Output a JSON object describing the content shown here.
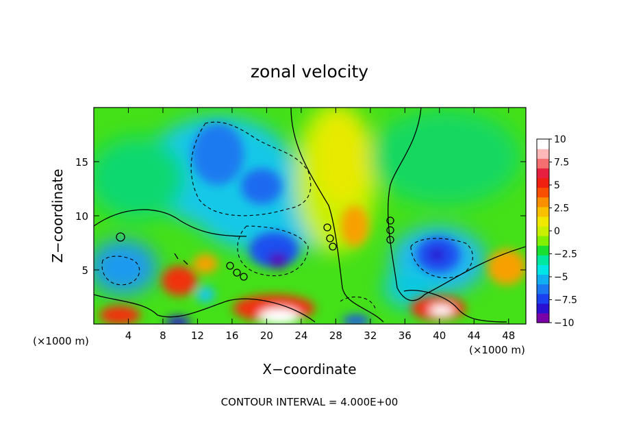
{
  "chart_data": {
    "type": "heatmap",
    "title": "zonal velocity",
    "xlabel": "X−coordinate",
    "ylabel": "Z−coordinate",
    "x_unit_left": "(×1000 m)",
    "x_unit_right": "(×1000 m)",
    "footer": "CONTOUR INTERVAL = 4.000E+00",
    "xlim": [
      0,
      50
    ],
    "ylim": [
      0,
      20
    ],
    "x_ticks": [
      "4",
      "8",
      "12",
      "16",
      "20",
      "24",
      "28",
      "32",
      "36",
      "40",
      "44",
      "48"
    ],
    "x_tick_values": [
      4,
      8,
      12,
      16,
      20,
      24,
      28,
      32,
      36,
      40,
      44,
      48
    ],
    "y_ticks": [
      "5",
      "10",
      "15"
    ],
    "y_tick_values": [
      5,
      10,
      15
    ],
    "colorbar": {
      "range": [
        -10,
        10
      ],
      "tick_labels": [
        "10",
        "7.5",
        "5",
        "2.5",
        "0",
        "−2.5",
        "−5",
        "−7.5",
        "−10"
      ],
      "tick_values": [
        10,
        7.5,
        5,
        2.5,
        0,
        -2.5,
        -5,
        -7.5,
        -10
      ],
      "colors": [
        "#7a00a8",
        "#2a10d0",
        "#1a40f0",
        "#1a78f0",
        "#10b0f0",
        "#00e6e6",
        "#00e8a0",
        "#18e030",
        "#80f000",
        "#c8f000",
        "#f0e800",
        "#f8c000",
        "#f89000",
        "#f85000",
        "#f02010",
        "#e82040",
        "#f47070",
        "#ffb8b8",
        "#ffffff"
      ]
    },
    "features": [
      {
        "x": 21.5,
        "z": 6,
        "value": -10
      },
      {
        "x": 19,
        "z": 12,
        "value": -5
      },
      {
        "x": 15,
        "z": 16,
        "value": -4.5
      },
      {
        "x": 39.5,
        "z": 6,
        "value": -9
      },
      {
        "x": 10,
        "z": 4,
        "value": 7
      },
      {
        "x": 22,
        "z": 1,
        "value": 10
      },
      {
        "x": 40,
        "z": 1.5,
        "value": 10
      },
      {
        "x": 30,
        "z": 9,
        "value": 5
      },
      {
        "x": 47,
        "z": 5,
        "value": 5
      },
      {
        "x": 30,
        "z": 14,
        "value": 2.5
      },
      {
        "x": 3,
        "z": 1,
        "value": 7
      }
    ]
  }
}
